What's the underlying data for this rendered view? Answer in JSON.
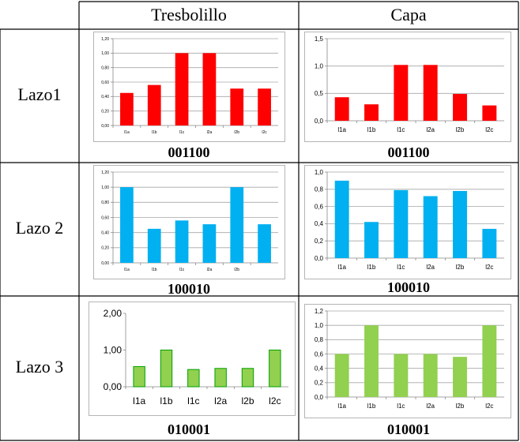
{
  "table": {
    "header": {
      "empty": "",
      "col1": "Tresbolillo",
      "col2": "Capa"
    },
    "rows": [
      {
        "label": "Lazo1",
        "code_left": "001100",
        "code_right": "001100"
      },
      {
        "label": "Lazo 2",
        "code_left": "100010",
        "code_right": "100010"
      },
      {
        "label": "Lazo 3",
        "code_left": "010001",
        "code_right": "010001"
      }
    ]
  },
  "chart_data": [
    {
      "id": "lazo1-tresbolillo",
      "type": "bar",
      "color": "#ff0000",
      "categories": [
        "l1a",
        "l1b",
        "l1c",
        "l2a",
        "l2b",
        "l2c"
      ],
      "values": [
        0.45,
        0.56,
        1.0,
        1.0,
        0.51,
        0.51
      ],
      "ylim": [
        0,
        1.2
      ],
      "yticks": [
        "0,00",
        "0,20",
        "0,40",
        "0,60",
        "0,80",
        "1,00",
        "1,20"
      ],
      "grid": true
    },
    {
      "id": "lazo1-capa",
      "type": "bar",
      "color": "#ff0000",
      "categories": [
        "l1a",
        "l1b",
        "l1c",
        "l2a",
        "l2b",
        "l2c"
      ],
      "values": [
        0.43,
        0.3,
        1.02,
        1.02,
        0.49,
        0.28
      ],
      "ylim": [
        0,
        1.5
      ],
      "yticks": [
        "0,0",
        "0,5",
        "1,0",
        "1,5"
      ],
      "grid": true
    },
    {
      "id": "lazo2-tresbolillo",
      "type": "bar",
      "color": "#00b0f0",
      "categories": [
        "l1a",
        "l1b",
        "l1c",
        "l2a",
        "l2b",
        ""
      ],
      "values": [
        1.0,
        0.45,
        0.56,
        0.51,
        1.0,
        0.51
      ],
      "ylim": [
        0,
        1.2
      ],
      "yticks": [
        "0,00",
        "0,20",
        "0,40",
        "0,60",
        "0,80",
        "1,00",
        "1,20"
      ],
      "grid": true
    },
    {
      "id": "lazo2-capa",
      "type": "bar",
      "color": "#00b0f0",
      "categories": [
        "l1a",
        "l1b",
        "l1c",
        "l2a",
        "l2b",
        "l2c"
      ],
      "values": [
        0.9,
        0.42,
        0.79,
        0.72,
        0.78,
        0.34
      ],
      "ylim": [
        0,
        1.0
      ],
      "yticks": [
        "0,0",
        "0,2",
        "0,4",
        "0,6",
        "0,8",
        "1,0"
      ],
      "grid": true
    },
    {
      "id": "lazo3-tresbolillo",
      "type": "bar",
      "color": "#92d050",
      "stroke": "#00a000",
      "categories": [
        "l1a",
        "l1b",
        "l1c",
        "l2a",
        "l2b",
        "l2c"
      ],
      "values": [
        0.55,
        1.0,
        0.47,
        0.5,
        0.5,
        1.0
      ],
      "ylim": [
        0,
        2.0
      ],
      "yticks": [
        "0,00",
        "1,00",
        "2,00"
      ],
      "grid": false
    },
    {
      "id": "lazo3-capa",
      "type": "bar",
      "color": "#92d050",
      "categories": [
        "l1a",
        "l1b",
        "l1c",
        "l2a",
        "l2b",
        "l2c"
      ],
      "values": [
        0.6,
        1.0,
        0.6,
        0.6,
        0.56,
        1.0
      ],
      "ylim": [
        0,
        1.2
      ],
      "yticks": [
        "0,0",
        "0,2",
        "0,4",
        "0,6",
        "0,8",
        "1,0",
        "1,2"
      ],
      "grid": true
    }
  ]
}
